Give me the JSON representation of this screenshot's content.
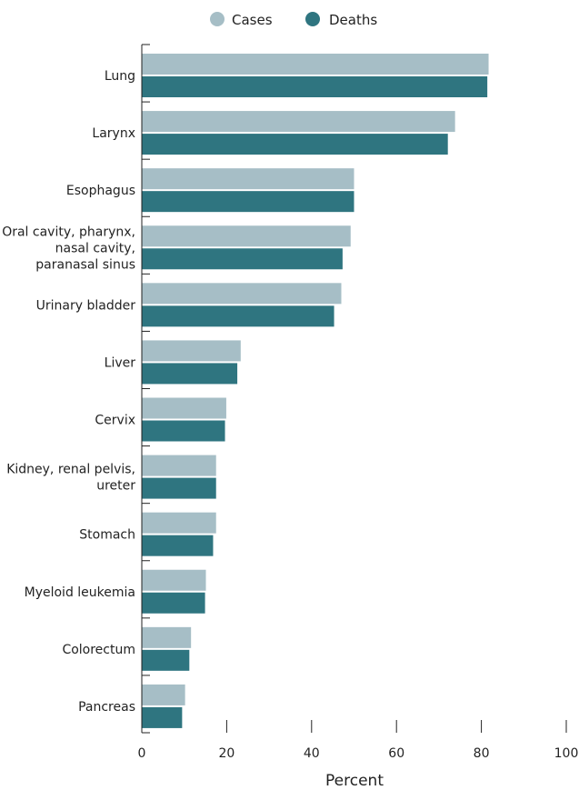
{
  "chart_data": {
    "type": "bar",
    "orientation": "horizontal",
    "categories": [
      [
        "Lung"
      ],
      [
        "Larynx"
      ],
      [
        "Esophagus"
      ],
      [
        "Oral cavity, pharynx,",
        "nasal cavity,",
        "paranasal sinus"
      ],
      [
        "Urinary bladder"
      ],
      [
        "Liver"
      ],
      [
        "Cervix"
      ],
      [
        "Kidney, renal pelvis,",
        "ureter"
      ],
      [
        "Stomach"
      ],
      [
        "Myeloid leukemia"
      ],
      [
        "Colorectum"
      ],
      [
        "Pancreas"
      ]
    ],
    "series": [
      {
        "name": "Cases",
        "color": "#a6bec6",
        "values": [
          81.7,
          73.8,
          50.0,
          49.2,
          47.0,
          23.3,
          19.9,
          17.5,
          17.5,
          15.1,
          11.6,
          10.2
        ]
      },
      {
        "name": "Deaths",
        "color": "#2f7580",
        "values": [
          81.4,
          72.1,
          50.0,
          47.3,
          45.3,
          22.5,
          19.6,
          17.5,
          16.8,
          14.9,
          11.2,
          9.5
        ]
      }
    ],
    "xlabel": "Percent",
    "ylabel": "",
    "xlim": [
      0,
      100
    ],
    "xticks": [
      0,
      20,
      40,
      60,
      80,
      100
    ],
    "legend": "top-center",
    "grid": false
  }
}
